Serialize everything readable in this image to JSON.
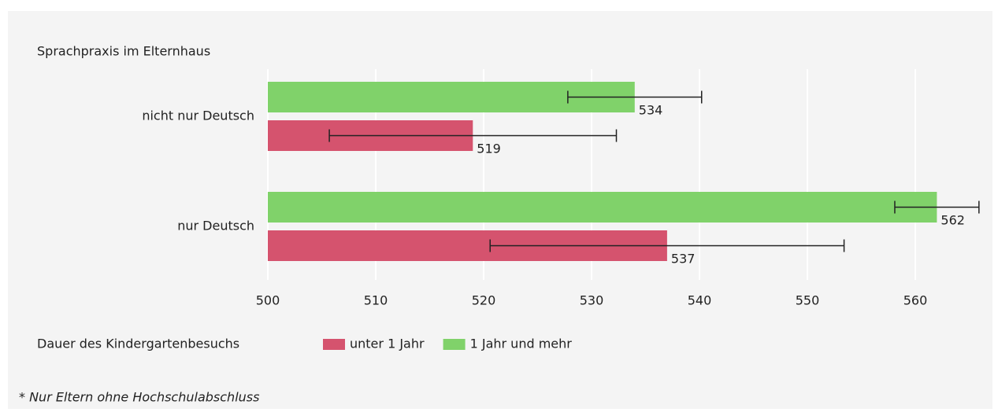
{
  "chart_data": {
    "type": "bar",
    "orientation": "horizontal",
    "y_axis_title": "Sprachpraxis im Elternhaus",
    "legend_title": "Dauer des Kindergartenbesuchs",
    "footnote": "* Nur Eltern ohne Hochschulabschluss",
    "categories": [
      "nicht nur Deutsch",
      "nur Deutsch"
    ],
    "series": [
      {
        "name": "1 Jahr und mehr",
        "color": "#80d26a",
        "values": [
          534,
          562
        ],
        "errors": [
          6.2,
          3.9
        ]
      },
      {
        "name": "unter 1 Jahr",
        "color": "#d5536e",
        "values": [
          519,
          537
        ],
        "errors": [
          13.3,
          16.4
        ]
      }
    ],
    "legend_order": [
      1,
      0
    ],
    "xlim": [
      500,
      566
    ],
    "xticks": [
      500,
      510,
      520,
      530,
      540,
      550,
      560
    ],
    "grid": true
  }
}
